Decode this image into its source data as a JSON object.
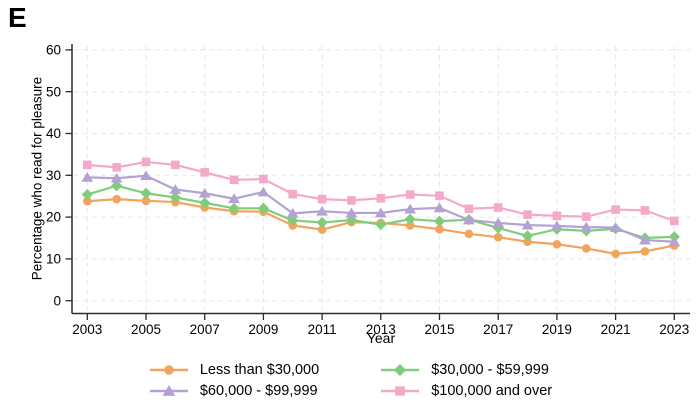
{
  "panel_label": "E",
  "chart_data": {
    "type": "line",
    "title": "",
    "xlabel": "Year",
    "ylabel": "Percentage who read for pleasure",
    "x": [
      2003,
      2004,
      2005,
      2006,
      2007,
      2008,
      2009,
      2010,
      2011,
      2012,
      2013,
      2014,
      2015,
      2016,
      2017,
      2018,
      2019,
      2020,
      2021,
      2022,
      2023
    ],
    "x_ticks": [
      2003,
      2005,
      2007,
      2009,
      2011,
      2013,
      2015,
      2017,
      2019,
      2021,
      2023
    ],
    "y_ticks": [
      0,
      10,
      20,
      30,
      40,
      50,
      60
    ],
    "ylim": [
      0,
      60
    ],
    "grid": "dashed-both",
    "legend_position": "bottom",
    "series": [
      {
        "name": "Less than $30,000",
        "marker": "circle",
        "color": "#F2A35C",
        "values": [
          23.8,
          24.3,
          23.9,
          23.6,
          22.3,
          21.4,
          21.3,
          18.0,
          17.0,
          18.8,
          18.6,
          18.0,
          17.1,
          16.0,
          15.2,
          14.1,
          13.5,
          12.5,
          11.2,
          11.8,
          13.2
        ]
      },
      {
        "name": "$30,000 - $59,999",
        "marker": "diamond",
        "color": "#7FCD7B",
        "values": [
          25.4,
          27.5,
          25.7,
          24.7,
          23.4,
          22.1,
          22.1,
          19.2,
          18.7,
          19.3,
          18.2,
          19.5,
          19.0,
          19.4,
          17.4,
          15.5,
          17.1,
          16.7,
          17.2,
          15.0,
          15.3
        ]
      },
      {
        "name": "$60,000 - $99,999",
        "marker": "triangle",
        "color": "#B4A2D4",
        "values": [
          29.5,
          29.3,
          29.9,
          26.6,
          25.7,
          24.4,
          26.0,
          20.9,
          21.4,
          21.0,
          21.0,
          21.9,
          22.2,
          19.3,
          18.6,
          18.1,
          17.9,
          17.6,
          17.5,
          14.5,
          14.1
        ]
      },
      {
        "name": "$100,000 and over",
        "marker": "square",
        "color": "#F5A9C8",
        "values": [
          32.5,
          31.9,
          33.2,
          32.5,
          30.7,
          28.9,
          29.1,
          25.5,
          24.3,
          24.0,
          24.5,
          25.4,
          25.1,
          22.0,
          22.3,
          20.6,
          20.3,
          20.1,
          21.8,
          21.6,
          19.1
        ]
      }
    ],
    "style": {
      "grid_color": "#e7e7e7",
      "axis_color": "#2b2b2b",
      "tick_label_size": 13.5
    }
  }
}
